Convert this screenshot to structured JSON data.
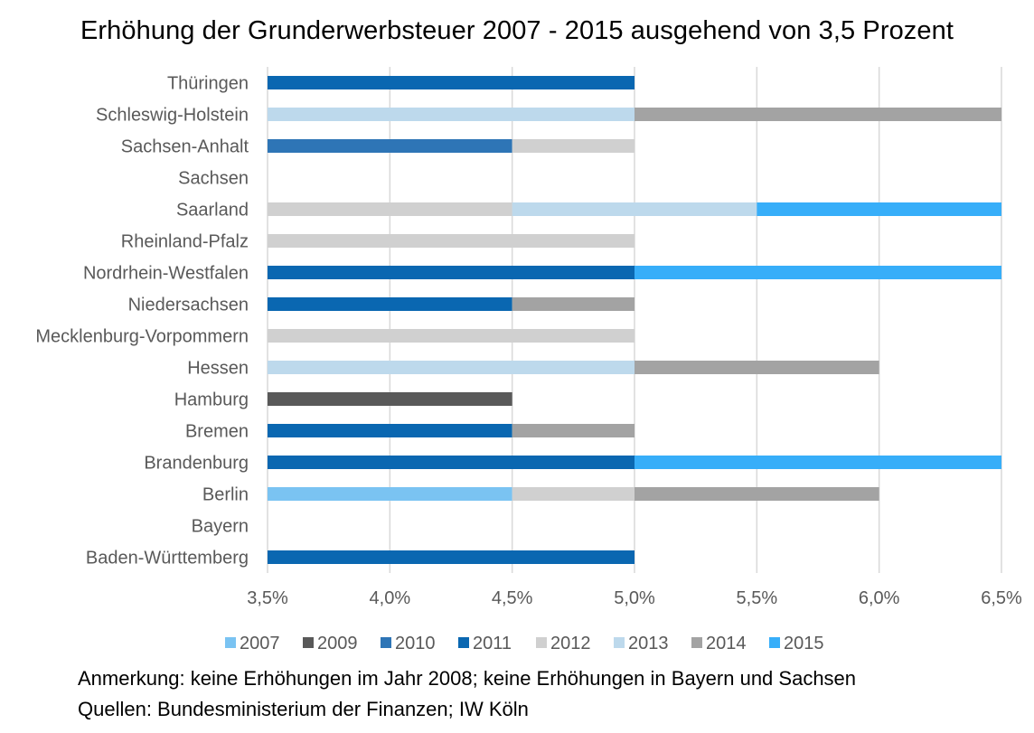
{
  "chart_data": {
    "type": "bar",
    "orientation": "horizontal",
    "stacked": true,
    "title": "Erhöhung der Grunderwerbsteuer 2007 - 2015 ausgehend von 3,5 Prozent",
    "xlabel": "",
    "ylabel": "",
    "xlim": [
      3.5,
      6.5
    ],
    "x_ticks": [
      3.5,
      4.0,
      4.5,
      5.0,
      5.5,
      6.0,
      6.5
    ],
    "x_tick_labels": [
      "3,5%",
      "4,0%",
      "4,5%",
      "5,0%",
      "5,5%",
      "6,0%",
      "6,5%"
    ],
    "grid": true,
    "legend_position": "bottom",
    "categories": [
      "Thüringen",
      "Schleswig-Holstein",
      "Sachsen-Anhalt",
      "Sachsen",
      "Saarland",
      "Rheinland-Pfalz",
      "Nordrhein-Westfalen",
      "Niedersachsen",
      "Mecklenburg-Vorpommern",
      "Hessen",
      "Hamburg",
      "Bremen",
      "Brandenburg",
      "Berlin",
      "Bayern",
      "Baden-Württemberg"
    ],
    "series_colors": {
      "2007": "#7ac3f2",
      "2009": "#595959",
      "2010": "#2e75b6",
      "2011": "#0a67b1",
      "2012": "#d0d0d0",
      "2013": "#bdd9ec",
      "2014": "#a3a3a3",
      "2015": "#37aef9"
    },
    "legend": [
      "2007",
      "2009",
      "2010",
      "2011",
      "2012",
      "2013",
      "2014",
      "2015"
    ],
    "segments": [
      [
        {
          "series": "2011",
          "from": 3.5,
          "to": 5.0
        }
      ],
      [
        {
          "series": "2013",
          "from": 3.5,
          "to": 5.0
        },
        {
          "series": "2014",
          "from": 5.0,
          "to": 6.5
        }
      ],
      [
        {
          "series": "2010",
          "from": 3.5,
          "to": 4.5
        },
        {
          "series": "2012",
          "from": 4.5,
          "to": 5.0
        }
      ],
      [],
      [
        {
          "series": "2012",
          "from": 3.5,
          "to": 4.5
        },
        {
          "series": "2013",
          "from": 4.5,
          "to": 5.5
        },
        {
          "series": "2015",
          "from": 5.5,
          "to": 6.5
        }
      ],
      [
        {
          "series": "2012",
          "from": 3.5,
          "to": 5.0
        }
      ],
      [
        {
          "series": "2011",
          "from": 3.5,
          "to": 5.0
        },
        {
          "series": "2015",
          "from": 5.0,
          "to": 6.5
        }
      ],
      [
        {
          "series": "2011",
          "from": 3.5,
          "to": 4.5
        },
        {
          "series": "2014",
          "from": 4.5,
          "to": 5.0
        }
      ],
      [
        {
          "series": "2012",
          "from": 3.5,
          "to": 5.0
        }
      ],
      [
        {
          "series": "2013",
          "from": 3.5,
          "to": 5.0
        },
        {
          "series": "2014",
          "from": 5.0,
          "to": 6.0
        }
      ],
      [
        {
          "series": "2009",
          "from": 3.5,
          "to": 4.5
        }
      ],
      [
        {
          "series": "2011",
          "from": 3.5,
          "to": 4.5
        },
        {
          "series": "2014",
          "from": 4.5,
          "to": 5.0
        }
      ],
      [
        {
          "series": "2011",
          "from": 3.5,
          "to": 5.0
        },
        {
          "series": "2015",
          "from": 5.0,
          "to": 6.5
        }
      ],
      [
        {
          "series": "2007",
          "from": 3.5,
          "to": 4.5
        },
        {
          "series": "2012",
          "from": 4.5,
          "to": 5.0
        },
        {
          "series": "2014",
          "from": 5.0,
          "to": 6.0
        }
      ],
      [],
      [
        {
          "series": "2011",
          "from": 3.5,
          "to": 5.0
        }
      ]
    ]
  },
  "notes": {
    "remark": "Anmerkung: keine Erhöhungen im Jahr 2008; keine Erhöhungen in Bayern und Sachsen",
    "source": "Quellen: Bundesministerium der Finanzen; IW Köln"
  },
  "colors": {
    "gridline": "#d9d9d9",
    "label_text": "#595959",
    "title_text": "#000000"
  }
}
